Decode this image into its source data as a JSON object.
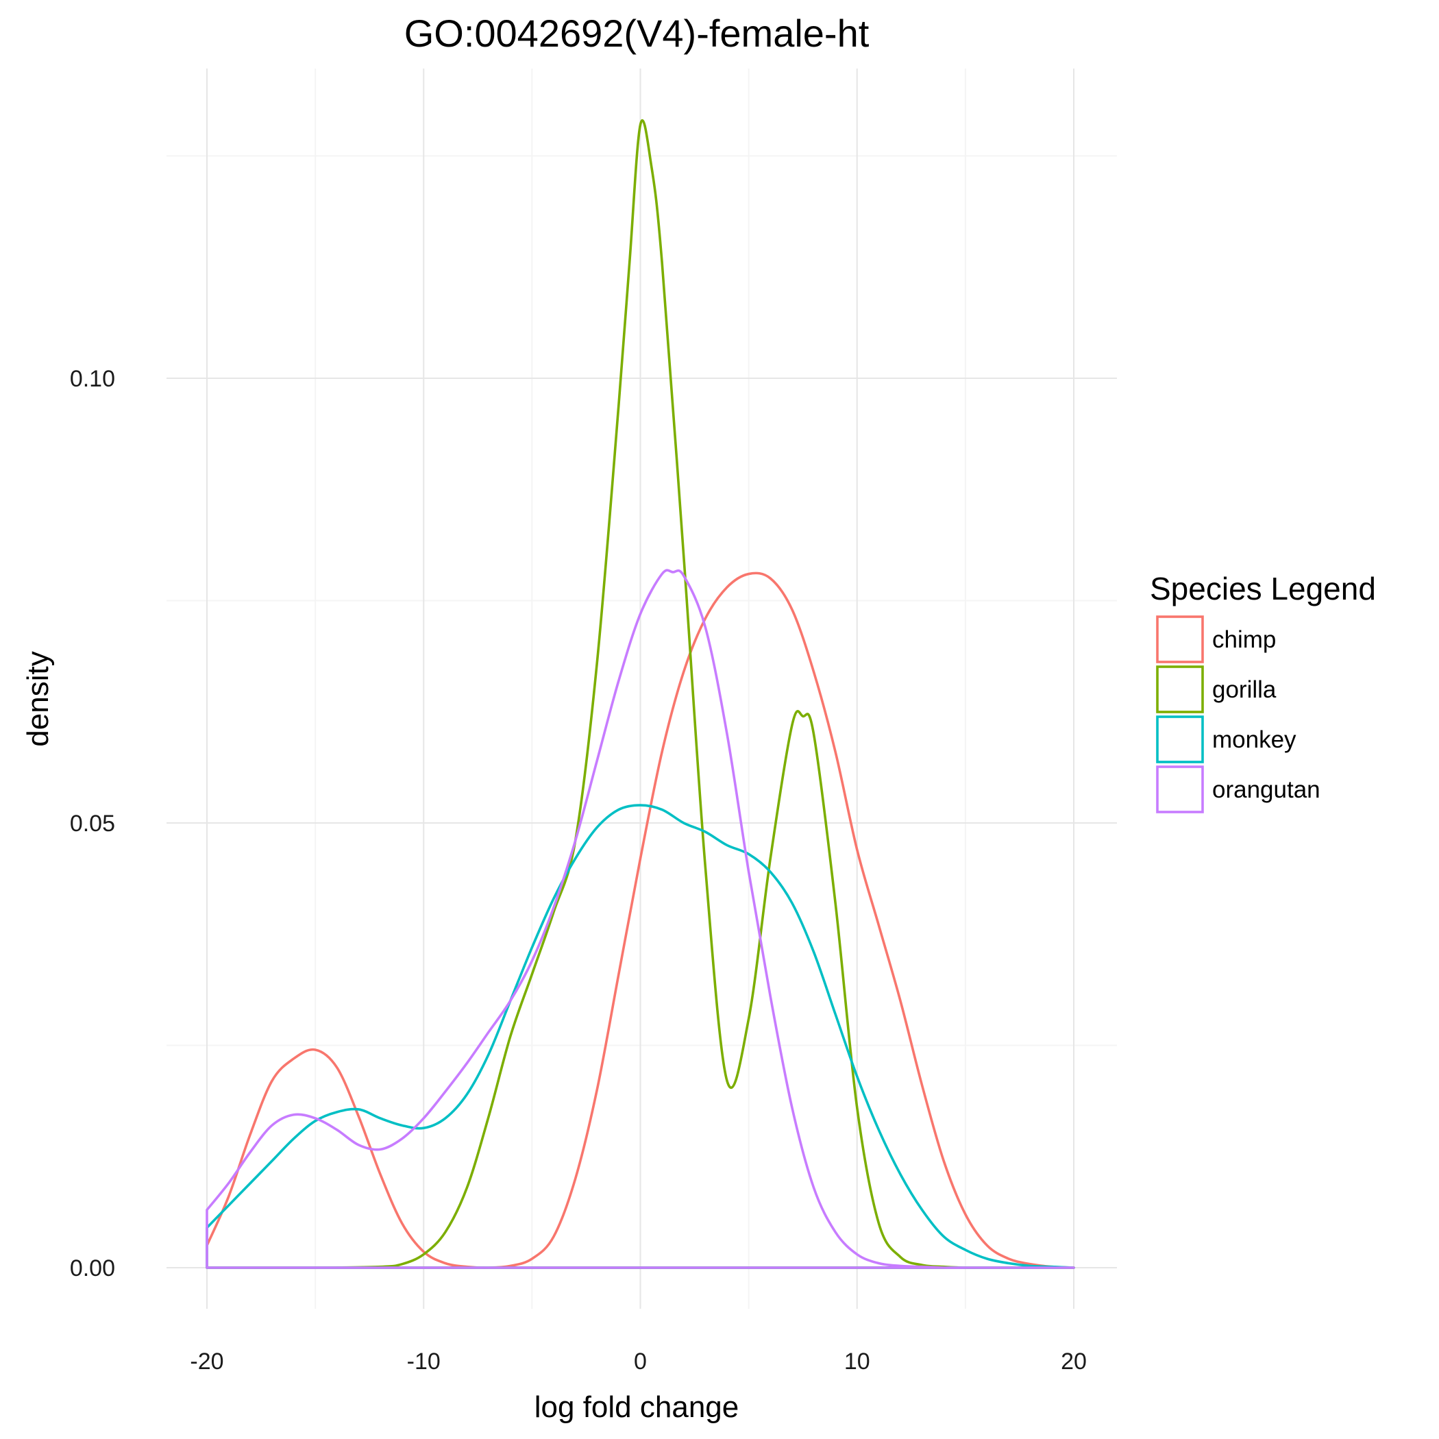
{
  "chart_data": {
    "type": "line",
    "title": "GO:0042692(V4)-female-ht",
    "xlabel": "log fold change",
    "ylabel": "density",
    "xlim": [
      -20,
      20
    ],
    "ylim": [
      0,
      0.128
    ],
    "x_ticks": [
      -20,
      -10,
      0,
      10,
      20
    ],
    "x_tick_labels": [
      "-20",
      "-10",
      "0",
      "10",
      "20"
    ],
    "y_ticks": [
      0,
      0.05,
      0.1
    ],
    "y_tick_labels": [
      "0.00",
      "0.05",
      "0.10"
    ],
    "grid": true,
    "legend_title": "Species Legend",
    "legend_position": "right",
    "series": [
      {
        "name": "chimp",
        "color": "#F8766D",
        "x": [
          -20,
          -19,
          -18,
          -17,
          -16,
          -15,
          -14,
          -13,
          -12,
          -11,
          -10,
          -9,
          -8,
          -7,
          -6,
          -5,
          -4,
          -3,
          -2,
          -1,
          0,
          1,
          2,
          3,
          4,
          5,
          6,
          7,
          8,
          9,
          10,
          11,
          12,
          13,
          14,
          15,
          16,
          17,
          18,
          19,
          20
        ],
        "y": [
          0.0025,
          0.008,
          0.015,
          0.021,
          0.0235,
          0.0245,
          0.0225,
          0.017,
          0.0105,
          0.005,
          0.0018,
          0.0005,
          0.0001,
          0.0,
          0.0002,
          0.001,
          0.0035,
          0.01,
          0.02,
          0.033,
          0.046,
          0.058,
          0.067,
          0.073,
          0.0765,
          0.078,
          0.0775,
          0.074,
          0.067,
          0.058,
          0.047,
          0.0385,
          0.03,
          0.0205,
          0.012,
          0.006,
          0.0025,
          0.001,
          0.0004,
          0.0001,
          0.0
        ]
      },
      {
        "name": "gorilla",
        "color": "#7CAE00",
        "x": [
          -20,
          -15,
          -12,
          -11,
          -10,
          -9,
          -8,
          -7,
          -6,
          -5,
          -4,
          -3,
          -2,
          -1,
          -0.5,
          0,
          0.5,
          1,
          2,
          3,
          4,
          5,
          6,
          7,
          7.5,
          8,
          9,
          10,
          11,
          12,
          13,
          14,
          15,
          16,
          20
        ],
        "y": [
          0.0,
          0.0,
          0.0001,
          0.0004,
          0.0015,
          0.004,
          0.009,
          0.017,
          0.026,
          0.033,
          0.04,
          0.048,
          0.068,
          0.097,
          0.113,
          0.1285,
          0.124,
          0.113,
          0.08,
          0.045,
          0.021,
          0.028,
          0.046,
          0.061,
          0.062,
          0.06,
          0.041,
          0.018,
          0.005,
          0.0012,
          0.0003,
          0.0001,
          0.0,
          0.0,
          0.0
        ]
      },
      {
        "name": "monkey",
        "color": "#00BFC4",
        "x": [
          -20,
          -19,
          -18,
          -17,
          -16,
          -15,
          -14,
          -13,
          -12,
          -11,
          -10,
          -9,
          -8,
          -7,
          -6,
          -5,
          -4,
          -3,
          -2,
          -1,
          0,
          1,
          2,
          3,
          4,
          5,
          6,
          7,
          8,
          9,
          10,
          11,
          12,
          13,
          14,
          15,
          16,
          17,
          18,
          19,
          20
        ],
        "y": [
          0.0045,
          0.007,
          0.0095,
          0.012,
          0.0145,
          0.0165,
          0.0175,
          0.0178,
          0.0168,
          0.016,
          0.0157,
          0.0168,
          0.0195,
          0.024,
          0.03,
          0.036,
          0.0415,
          0.046,
          0.0495,
          0.0515,
          0.052,
          0.0515,
          0.05,
          0.049,
          0.0475,
          0.0465,
          0.0445,
          0.041,
          0.0355,
          0.0285,
          0.0215,
          0.0155,
          0.0105,
          0.0065,
          0.0035,
          0.002,
          0.001,
          0.0005,
          0.0002,
          0.0001,
          0.0
        ]
      },
      {
        "name": "orangutan",
        "color": "#C77CFF",
        "x": [
          -20,
          -19,
          -18,
          -17,
          -16,
          -15,
          -14,
          -13,
          -12,
          -11,
          -10,
          -9,
          -8,
          -7,
          -6,
          -5,
          -4,
          -3,
          -2,
          -1,
          0,
          1,
          1.5,
          2,
          3,
          4,
          5,
          6,
          7,
          8,
          9,
          10,
          11,
          12,
          13,
          14,
          15,
          16,
          17,
          18,
          19,
          20
        ],
        "y": [
          0.0065,
          0.0095,
          0.013,
          0.016,
          0.0172,
          0.0168,
          0.0155,
          0.0138,
          0.0133,
          0.0145,
          0.0168,
          0.0198,
          0.023,
          0.0265,
          0.03,
          0.0345,
          0.0405,
          0.048,
          0.057,
          0.066,
          0.0735,
          0.078,
          0.0782,
          0.0778,
          0.072,
          0.06,
          0.0445,
          0.0305,
          0.018,
          0.009,
          0.004,
          0.0015,
          0.0005,
          0.0002,
          0.0001,
          0.0,
          0.0,
          0.0,
          0.0,
          0.0,
          0.0,
          0.0
        ]
      }
    ]
  }
}
